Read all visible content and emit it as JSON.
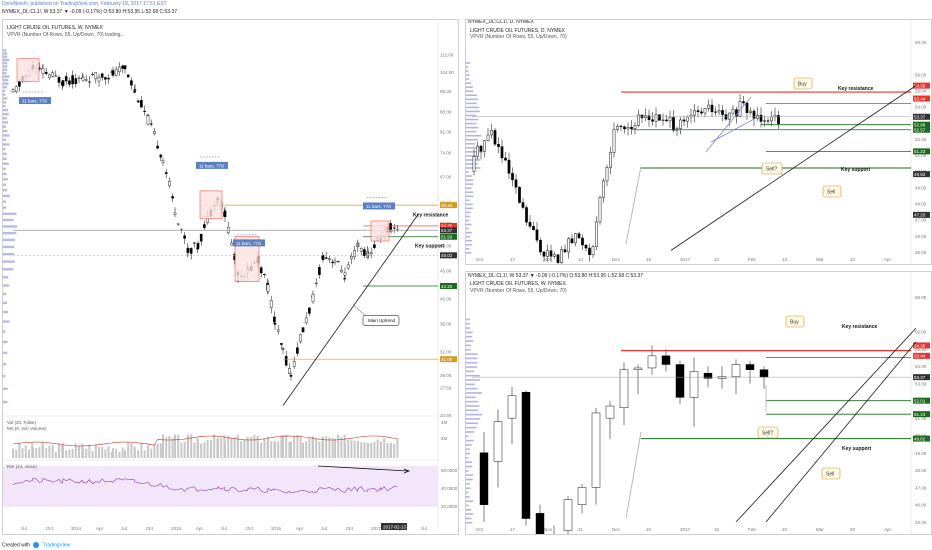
{
  "header": {
    "author_line": "DorsiNeishi, published on TradingView.com, February 18, 2017 17:51 EST",
    "ticker_line": "NYMEX_DL:CL1!, W  53.37 ▼ -0.09 (-0.17%)  O:53.80  H:53.95  L:52.68  C:53.37"
  },
  "footer": {
    "created_with": "Created with",
    "brand": "TradingView"
  },
  "colors": {
    "up": "#ffffff",
    "down": "#000000",
    "resistance": "#e8322c",
    "support": "#1c6b1c",
    "trendline": "#1a1a1a",
    "volume_profile": "#7b84d8",
    "rsi_fill": "#f3e6fb",
    "rsi_line": "#8a3aa8",
    "orange_level": "#d79a26",
    "label_blue": "#5b80c1"
  },
  "charts": {
    "weekly": {
      "title": "LIGHT CRUDE OIL FUTURES, W, NYMEX",
      "subtitle": "VPVR (Number Of Rows, 55, Up/Down, 70) trading...",
      "axis_ticks": [
        "112.00",
        "104.00",
        "96.00",
        "88.00",
        "81.00",
        "74.00",
        "67.00",
        "60.00",
        "55.00",
        "50.00",
        "45.00",
        "40.00",
        "36.00",
        "32.00",
        "29.00",
        "27.50",
        "24.50"
      ],
      "price_tags": [
        {
          "text": "59.34",
          "color": "#d79a26"
        },
        {
          "text": "54.35",
          "color": "#e8322c"
        },
        {
          "text": "53.37",
          "color": "#333333"
        },
        {
          "text": "51.93",
          "color": "#1c6b1c"
        },
        {
          "text": "48.02",
          "color": "#333333"
        },
        {
          "text": "42.20",
          "color": "#1c6b1c"
        },
        {
          "text": "31.00",
          "color": "#d79a26"
        }
      ],
      "bar_labels": [
        "11 bars, 77d",
        "11 bars, 77d",
        "11 bars, 77d",
        "11 bars, 77d"
      ],
      "annotations": {
        "key_resistance": "Key resistance",
        "key_support": "Key support",
        "main_uptrend": "Main Uptrend"
      },
      "x_ticks": [
        "Jul",
        "Oct",
        "2014",
        "Apr",
        "Jul",
        "Oct",
        "2015",
        "Apr",
        "Jul",
        "Oct",
        "2016",
        "Apr",
        "Jul",
        "Oct",
        "2017",
        "Apr",
        "Jul"
      ],
      "x_highlight": "2017-02-13",
      "volume": {
        "label": "Vol (20, False)",
        "ma_label": "MA (9, Vol: Volume)",
        "axis": [
          "4M",
          "2M"
        ]
      },
      "rsi": {
        "label": "RSI (14, close)",
        "axis": [
          "60.0000",
          "40.0000",
          "20.0000"
        ]
      }
    },
    "daily": {
      "title_line": "NYMEX_DL:CL1!, D, NYMEX",
      "title": "LIGHT CRUDE OIL FUTURES, D, NYMEX",
      "subtitle": "VPVR (Number Of Rows, 55, Up/Down, 70)",
      "axis_ticks": [
        "58.00",
        "56.00",
        "55.00",
        "54.00",
        "53.00",
        "52.00",
        "51.00",
        "50.00",
        "49.00",
        "48.00",
        "47.00",
        "46.00",
        "45.00"
      ],
      "price_tags": [
        {
          "text": "54.35",
          "color": "#e8322c"
        },
        {
          "text": "53.44",
          "color": "#e8322c"
        },
        {
          "text": "53.37",
          "color": "#333333"
        },
        {
          "text": "52.88",
          "color": "#1c6b1c"
        },
        {
          "text": "52.57",
          "color": "#1c6b1c"
        },
        {
          "text": "51.23",
          "color": "#1c6b1c"
        },
        {
          "text": "49.82",
          "color": "#333333"
        },
        {
          "text": "47.20",
          "color": "#333333"
        }
      ],
      "annotations": {
        "buy": "Buy",
        "key_resistance": "Key resistance",
        "sell_q": "Sell?",
        "key_support": "Key support",
        "sell": "Sell"
      },
      "x_ticks": [
        "Oct",
        "17",
        "Nov",
        "14",
        "Dec",
        "19",
        "2017",
        "13",
        "Feb",
        "13",
        "Mar",
        "13",
        "Apr"
      ]
    },
    "weekly_zoom": {
      "title_line": "NYMEX_DL:CL1!, W  53.37 ▼ -0.09 (-0.17%)  O:53.80  H:53.95  L:52.68  C:53.37",
      "title": "LIGHT CRUDE OIL FUTURES, W, NYMEX",
      "subtitle": "VPVR (Number Of Rows, 55, Up/Down, 70)",
      "axis_ticks": [
        "58.00",
        "56.00",
        "55.00",
        "54.00",
        "53.00",
        "52.00",
        "51.00",
        "50.00",
        "49.00",
        "48.00",
        "47.00",
        "46.00",
        "45.00"
      ],
      "price_tags": [
        {
          "text": "54.35",
          "color": "#e8322c"
        },
        {
          "text": "53.44",
          "color": "#e8322c"
        },
        {
          "text": "53.37",
          "color": "#333333"
        },
        {
          "text": "52.01",
          "color": "#1c6b1c"
        },
        {
          "text": "51.23",
          "color": "#1c6b1c"
        },
        {
          "text": "49.82",
          "color": "#1c6b1c"
        }
      ],
      "annotations": {
        "buy": "Buy",
        "key_resistance": "Key resistance",
        "sell_q": "Sell?",
        "key_support": "Key support",
        "sell": "Sell"
      },
      "x_ticks": [
        "Oct",
        "17",
        "Nov",
        "21",
        "Dec",
        "19",
        "2017",
        "16",
        "Feb",
        "20",
        "Mar",
        "20",
        "Apr"
      ]
    }
  }
}
